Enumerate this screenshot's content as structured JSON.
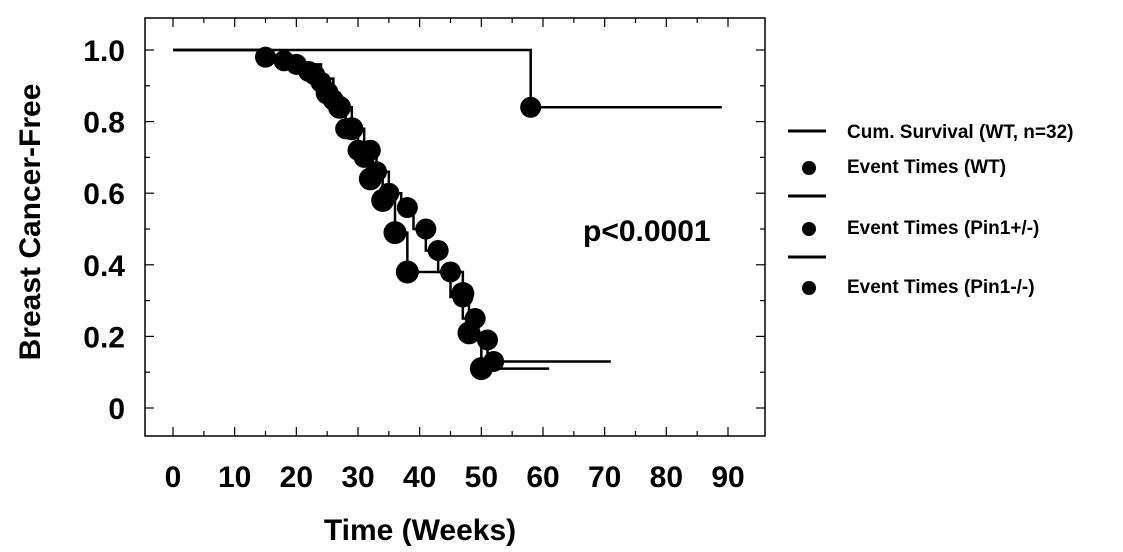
{
  "chart_data": {
    "type": "line",
    "title": "",
    "xlabel": "Time (Weeks)",
    "ylabel": "Breast Cancer-Free",
    "xlim": [
      0,
      90
    ],
    "ylim": [
      0,
      1.0
    ],
    "x_ticks": [
      0,
      10,
      20,
      30,
      40,
      50,
      60,
      70,
      80,
      90
    ],
    "x_tick_labels": [
      "0",
      "10",
      "20",
      "30",
      "40",
      "50",
      "60",
      "70",
      "80",
      "90"
    ],
    "y_ticks": [
      0,
      0.2,
      0.4,
      0.6,
      0.8,
      1.0
    ],
    "y_tick_labels": [
      "0",
      "0.2",
      "0.4",
      "0.6",
      "0.8",
      "1.0"
    ],
    "grid": false,
    "legend_position": "right",
    "annotation": "p<0.0001",
    "series": [
      {
        "name": "Cum. Survival (WT, n=32)",
        "style": "step",
        "x": [
          0,
          58,
          89
        ],
        "y": [
          1.0,
          0.84,
          0.84
        ]
      },
      {
        "name": "Event Times (WT)",
        "style": "marker",
        "x": [
          58
        ],
        "y": [
          0.84
        ]
      },
      {
        "name": "",
        "style": "step",
        "x": [
          0,
          15,
          20,
          23,
          25,
          27,
          29,
          31,
          33,
          35,
          37,
          39,
          41,
          43,
          45,
          47,
          49,
          51,
          52,
          71
        ],
        "y": [
          1.0,
          0.98,
          0.96,
          0.93,
          0.88,
          0.84,
          0.78,
          0.72,
          0.66,
          0.6,
          0.56,
          0.5,
          0.44,
          0.38,
          0.31,
          0.25,
          0.19,
          0.13,
          0.13,
          0.13
        ]
      },
      {
        "name": "Event Times (Pin1+/-)",
        "style": "marker",
        "x": [
          15,
          18,
          20,
          22,
          23,
          24,
          25,
          26,
          27,
          28,
          30,
          31,
          32,
          33,
          35,
          38,
          41,
          43,
          45,
          47,
          49,
          51,
          52
        ],
        "y": [
          0.98,
          0.97,
          0.96,
          0.94,
          0.93,
          0.91,
          0.88,
          0.86,
          0.84,
          0.78,
          0.72,
          0.7,
          0.72,
          0.66,
          0.6,
          0.56,
          0.5,
          0.44,
          0.38,
          0.31,
          0.25,
          0.19,
          0.13
        ]
      },
      {
        "name": "",
        "style": "step",
        "x": [
          0,
          15,
          20,
          24,
          26,
          28,
          30,
          32,
          34,
          36,
          38,
          47,
          48,
          50,
          61
        ],
        "y": [
          1.0,
          0.98,
          0.96,
          0.92,
          0.85,
          0.78,
          0.71,
          0.64,
          0.58,
          0.49,
          0.38,
          0.32,
          0.21,
          0.11,
          0.11
        ]
      },
      {
        "name": "Event Times (Pin1-/-)",
        "style": "marker",
        "x": [
          25,
          27,
          29,
          31,
          32,
          34,
          36,
          38,
          47,
          48,
          50
        ],
        "y": [
          0.88,
          0.84,
          0.78,
          0.71,
          0.64,
          0.58,
          0.49,
          0.38,
          0.32,
          0.21,
          0.11
        ]
      }
    ],
    "legend": [
      {
        "label": "Cum. Survival (WT, n=32)",
        "symbol": "line"
      },
      {
        "label": "Event Times (WT)",
        "symbol": "dot"
      },
      {
        "label": "",
        "symbol": "line"
      },
      {
        "label": "Event Times (Pin1+/-)",
        "symbol": "dot"
      },
      {
        "label": "",
        "symbol": "line"
      },
      {
        "label": "Event Times (Pin1-/-)",
        "symbol": "dot"
      }
    ]
  }
}
